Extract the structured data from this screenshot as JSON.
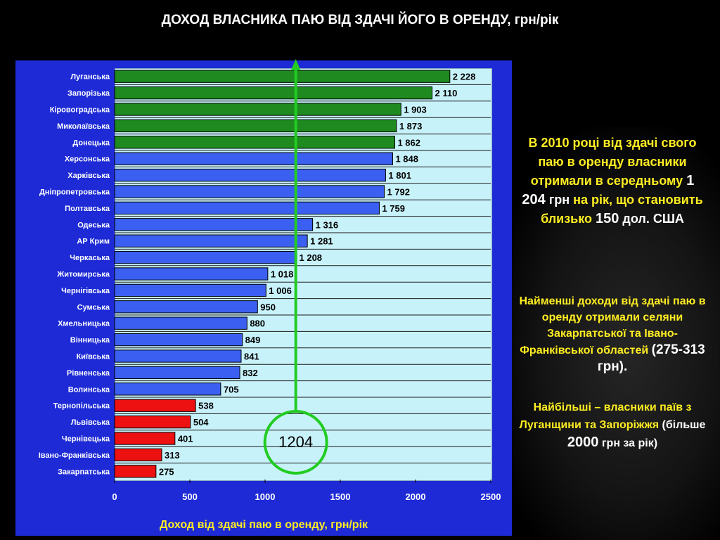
{
  "page_title": "ДОХОД ВЛАСНИКА ПАЮ ВІД ЗДАЧІ ЙОГО В ОРЕНДУ, грн/рік",
  "chart_data": {
    "type": "bar",
    "orientation": "horizontal",
    "xlabel": "Доход від здачі паю в оренду, грн/рік",
    "xlim": [
      0,
      2500
    ],
    "xticks": [
      0,
      500,
      1000,
      1500,
      2000,
      2500
    ],
    "grid": true,
    "categories": [
      "Луганська",
      "Запорізька",
      "Кіровоградська",
      "Миколаївська",
      "Донецька",
      "Херсонська",
      "Харківська",
      "Дніпропетровська",
      "Полтавська",
      "Одеська",
      "АР Крим",
      "Черкаська",
      "Житомирська",
      "Чернігівська",
      "Сумська",
      "Хмельницька",
      "Вінницька",
      "Київська",
      "Рівненська",
      "Волинська",
      "Тернопільська",
      "Львівська",
      "Чернівецька",
      "Івано-Франківська",
      "Закарпатська"
    ],
    "values": [
      2228,
      2110,
      1903,
      1873,
      1862,
      1848,
      1801,
      1792,
      1759,
      1316,
      1281,
      1208,
      1018,
      1006,
      950,
      880,
      849,
      841,
      832,
      705,
      538,
      504,
      401,
      313,
      275
    ],
    "value_labels": [
      "2 228",
      "2 110",
      "1 903",
      "1 873",
      "1 862",
      "1 848",
      "1 801",
      "1 792",
      "1 759",
      "1 316",
      "1 281",
      "1 208",
      "1 018",
      "1 006",
      "950",
      "880",
      "849",
      "841",
      "832",
      "705",
      "538",
      "504",
      "401",
      "313",
      "275"
    ],
    "bar_colors": {
      "top": "#1f8a1f",
      "middle": "#3b5ff0",
      "bottom": "#ee1111"
    },
    "group_sizes": {
      "top": 5,
      "bottom": 5
    },
    "average": {
      "value": 1204,
      "label": "1204",
      "color": "#22cc22"
    }
  },
  "side": {
    "p1_a": "В 2010 році від здачі свого паю в оренду власники отримали в середньому",
    "p1_value": "1 204",
    "p1_unit": "грн",
    "p1_b": "на рік, що становить близько",
    "p1_value2": "150",
    "p1_unit2": "дол. США",
    "p2_a": "Найменші доходи від здачі паю в оренду отримали селяни Закарпатської та Івано-Франківської",
    "p2_b": "областей",
    "p2_range": "(275-313 грн).",
    "p3_a": "Найбільші – власники паїв з Луганщини та Запоріжжя",
    "p3_open": "(більше",
    "p3_value": "2000",
    "p3_close": "грн за рік)"
  }
}
